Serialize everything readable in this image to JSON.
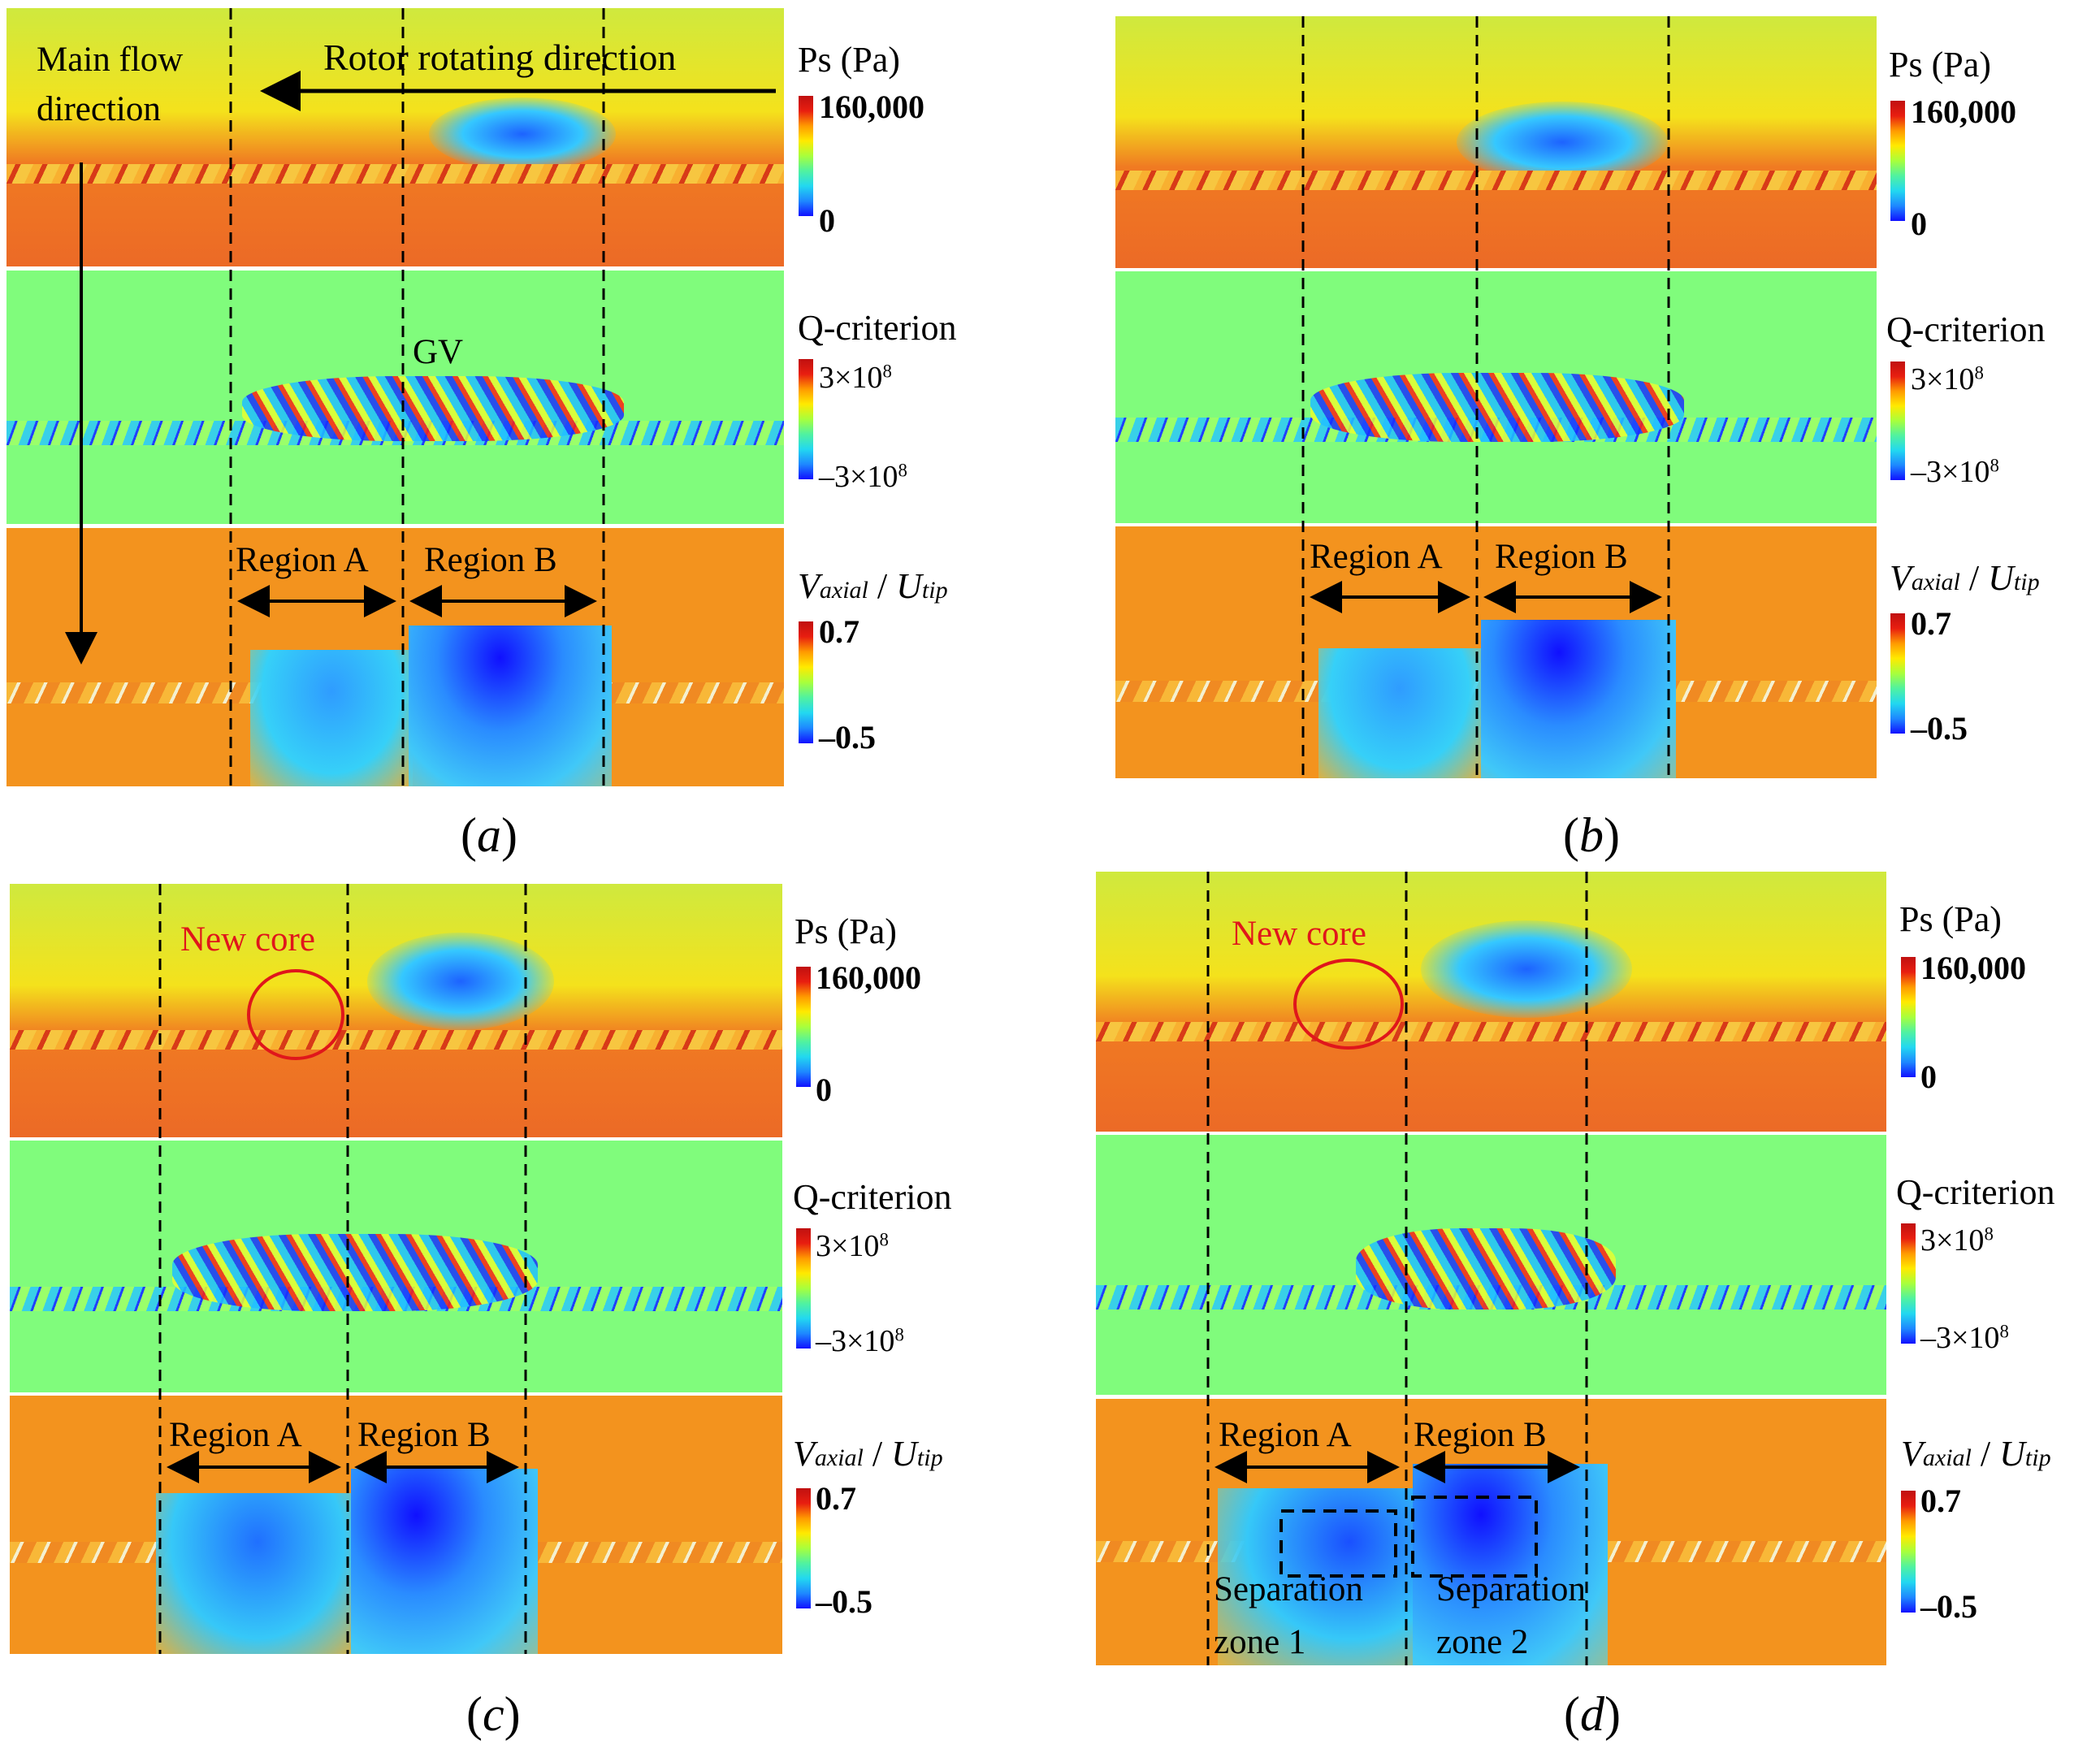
{
  "legend": {
    "ps": {
      "title": "Ps (Pa)",
      "max": "160,000",
      "min": "0"
    },
    "q": {
      "title": "Q-criterion",
      "max_base": "3×10",
      "max_exp": "8",
      "min_base": "–3×10",
      "min_exp": "8"
    },
    "v": {
      "title_v": "V",
      "title_v_sub": "axial",
      "title_slash": " / ",
      "title_u": "U",
      "title_u_sub": "tip",
      "max": "0.7",
      "min": "–0.5"
    },
    "colors": [
      "#1010ff",
      "#1e88ff",
      "#22d8f0",
      "#50f2a0",
      "#a8ff3c",
      "#ffea00",
      "#ff9a00",
      "#e81e10",
      "#c01010"
    ]
  },
  "annotations": {
    "main_flow_line1": "Main flow",
    "main_flow_line2": "direction",
    "rotor": "Rotor rotating direction",
    "gv": "GV",
    "region_a": "Region A",
    "region_b": "Region B",
    "new_core": "New core",
    "sep1_line1": "Separation",
    "sep1_line2": "zone 1",
    "sep2_line1": "Separation",
    "sep2_line2": "zone 2"
  },
  "captions": {
    "a": "a",
    "b": "b",
    "c": "c",
    "d": "d",
    "open": "(",
    "close": ")"
  },
  "colormap": {
    "ps_top": "#d9ec38",
    "ps_bottom": "#f07024",
    "q_bg": "#80fc7c",
    "v_bg": "#f3931e"
  }
}
